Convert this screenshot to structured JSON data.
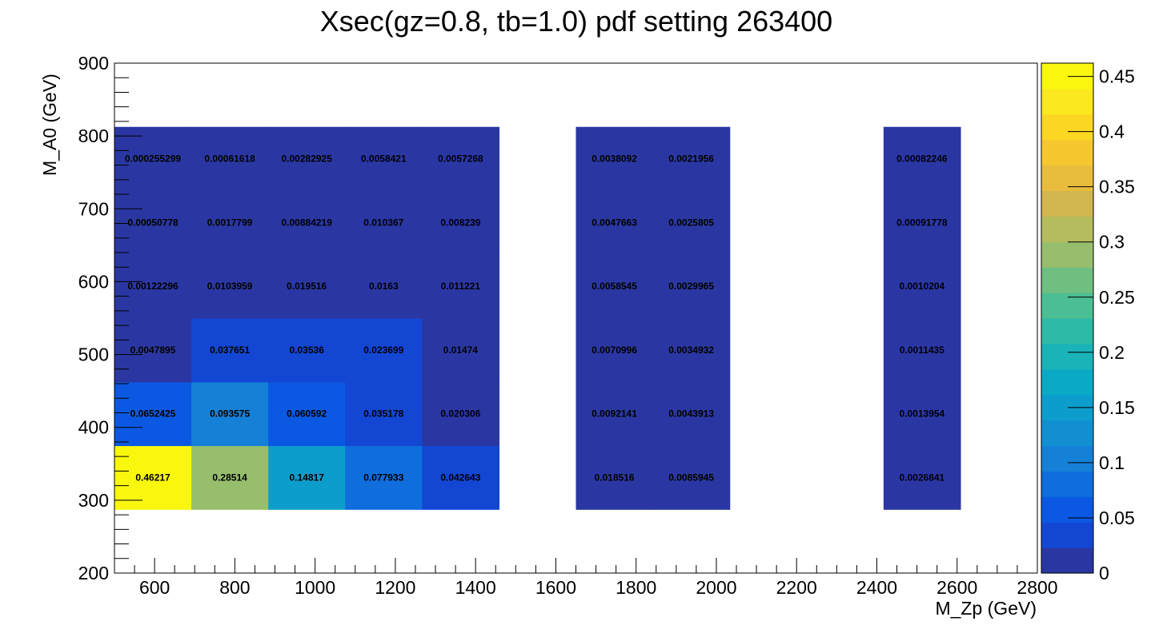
{
  "chart_data": {
    "type": "heatmap",
    "title": "Xsec(gz=0.8, tb=1.0) pdf setting 263400",
    "xlabel": "M_Zp (GeV)",
    "ylabel": "M_A0 (GeV)",
    "xlim": [
      500,
      2800
    ],
    "ylim": [
      200,
      900
    ],
    "zlim": [
      0,
      0.462
    ],
    "x_ticks": [
      "600",
      "800",
      "1000",
      "1200",
      "1400",
      "1600",
      "1800",
      "2000",
      "2200",
      "2400",
      "2600",
      "2800"
    ],
    "y_ticks": [
      "200",
      "300",
      "400",
      "500",
      "600",
      "700",
      "800",
      "900"
    ],
    "z_ticks": [
      "0",
      "0.05",
      "0.1",
      "0.15",
      "0.2",
      "0.25",
      "0.3",
      "0.35",
      "0.4",
      "0.45"
    ],
    "x_bin_edges": [
      500,
      691.67,
      883.33,
      1075,
      1266.67,
      1458.33,
      1650,
      1841.67,
      2033.33,
      2225,
      2416.67,
      2608.33,
      2800
    ],
    "y_bin_edges": [
      200,
      287.5,
      375,
      462.5,
      550,
      637.5,
      725,
      812.5,
      900
    ],
    "cells": [
      {
        "xbin": 0,
        "ybin": 1,
        "value": 0.46217,
        "label": "0.46217"
      },
      {
        "xbin": 1,
        "ybin": 1,
        "value": 0.28514,
        "label": "0.28514"
      },
      {
        "xbin": 2,
        "ybin": 1,
        "value": 0.14817,
        "label": "0.14817"
      },
      {
        "xbin": 3,
        "ybin": 1,
        "value": 0.077933,
        "label": "0.077933"
      },
      {
        "xbin": 4,
        "ybin": 1,
        "value": 0.042643,
        "label": "0.042643"
      },
      {
        "xbin": 6,
        "ybin": 1,
        "value": 0.018516,
        "label": "0.018516"
      },
      {
        "xbin": 7,
        "ybin": 1,
        "value": 0.0085945,
        "label": "0.0085945"
      },
      {
        "xbin": 10,
        "ybin": 1,
        "value": 0.0026841,
        "label": "0.0026841"
      },
      {
        "xbin": 0,
        "ybin": 2,
        "value": 0.0652425,
        "label": "0.0652425"
      },
      {
        "xbin": 1,
        "ybin": 2,
        "value": 0.093575,
        "label": "0.093575"
      },
      {
        "xbin": 2,
        "ybin": 2,
        "value": 0.060592,
        "label": "0.060592"
      },
      {
        "xbin": 3,
        "ybin": 2,
        "value": 0.035178,
        "label": "0.035178"
      },
      {
        "xbin": 4,
        "ybin": 2,
        "value": 0.020306,
        "label": "0.020306"
      },
      {
        "xbin": 6,
        "ybin": 2,
        "value": 0.0092141,
        "label": "0.0092141"
      },
      {
        "xbin": 7,
        "ybin": 2,
        "value": 0.0043913,
        "label": "0.0043913"
      },
      {
        "xbin": 10,
        "ybin": 2,
        "value": 0.0013954,
        "label": "0.0013954"
      },
      {
        "xbin": 0,
        "ybin": 3,
        "value": 0.0047895,
        "label": "0.0047895"
      },
      {
        "xbin": 1,
        "ybin": 3,
        "value": 0.037651,
        "label": "0.037651"
      },
      {
        "xbin": 2,
        "ybin": 3,
        "value": 0.03536,
        "label": "0.03536"
      },
      {
        "xbin": 3,
        "ybin": 3,
        "value": 0.023699,
        "label": "0.023699"
      },
      {
        "xbin": 4,
        "ybin": 3,
        "value": 0.01474,
        "label": "0.01474"
      },
      {
        "xbin": 6,
        "ybin": 3,
        "value": 0.0070996,
        "label": "0.0070996"
      },
      {
        "xbin": 7,
        "ybin": 3,
        "value": 0.0034932,
        "label": "0.0034932"
      },
      {
        "xbin": 10,
        "ybin": 3,
        "value": 0.0011435,
        "label": "0.0011435"
      },
      {
        "xbin": 0,
        "ybin": 4,
        "value": 0.00122296,
        "label": "0.00122296"
      },
      {
        "xbin": 1,
        "ybin": 4,
        "value": 0.0103959,
        "label": "0.0103959"
      },
      {
        "xbin": 2,
        "ybin": 4,
        "value": 0.019516,
        "label": "0.019516"
      },
      {
        "xbin": 3,
        "ybin": 4,
        "value": 0.0163,
        "label": "0.0163"
      },
      {
        "xbin": 4,
        "ybin": 4,
        "value": 0.011221,
        "label": "0.011221"
      },
      {
        "xbin": 6,
        "ybin": 4,
        "value": 0.0058545,
        "label": "0.0058545"
      },
      {
        "xbin": 7,
        "ybin": 4,
        "value": 0.0029965,
        "label": "0.0029965"
      },
      {
        "xbin": 10,
        "ybin": 4,
        "value": 0.0010204,
        "label": "0.0010204"
      },
      {
        "xbin": 0,
        "ybin": 5,
        "value": 0.00050778,
        "label": "0.00050778"
      },
      {
        "xbin": 1,
        "ybin": 5,
        "value": 0.0017799,
        "label": "0.0017799"
      },
      {
        "xbin": 2,
        "ybin": 5,
        "value": 0.00884219,
        "label": "0.00884219"
      },
      {
        "xbin": 3,
        "ybin": 5,
        "value": 0.010367,
        "label": "0.010367"
      },
      {
        "xbin": 4,
        "ybin": 5,
        "value": 0.008239,
        "label": "0.008239"
      },
      {
        "xbin": 6,
        "ybin": 5,
        "value": 0.0047663,
        "label": "0.0047663"
      },
      {
        "xbin": 7,
        "ybin": 5,
        "value": 0.0025805,
        "label": "0.0025805"
      },
      {
        "xbin": 10,
        "ybin": 5,
        "value": 0.00091778,
        "label": "0.00091778"
      },
      {
        "xbin": 0,
        "ybin": 6,
        "value": 0.000255299,
        "label": "0.000255299"
      },
      {
        "xbin": 1,
        "ybin": 6,
        "value": 0.00061618,
        "label": "0.00061618"
      },
      {
        "xbin": 2,
        "ybin": 6,
        "value": 0.00282925,
        "label": "0.00282925"
      },
      {
        "xbin": 3,
        "ybin": 6,
        "value": 0.0058421,
        "label": "0.0058421"
      },
      {
        "xbin": 4,
        "ybin": 6,
        "value": 0.0057268,
        "label": "0.0057268"
      },
      {
        "xbin": 6,
        "ybin": 6,
        "value": 0.0038092,
        "label": "0.0038092"
      },
      {
        "xbin": 7,
        "ybin": 6,
        "value": 0.0021956,
        "label": "0.0021956"
      },
      {
        "xbin": 10,
        "ybin": 6,
        "value": 0.00082246,
        "label": "0.00082246"
      }
    ],
    "palette": [
      "#2a37a3",
      "#1347d3",
      "#0b59e2",
      "#0f6ddc",
      "#1480d6",
      "#128fd1",
      "#0d9dcc",
      "#0aaac6",
      "#19b3b8",
      "#2dbaa6",
      "#4cbe93",
      "#6fbf80",
      "#97be6d",
      "#b5bc5e",
      "#d2b64f",
      "#e8bc3d",
      "#f6c72e",
      "#fbd723",
      "#fbe81e",
      "#f9f70e"
    ],
    "grid": false,
    "legend": "right colorbar"
  }
}
